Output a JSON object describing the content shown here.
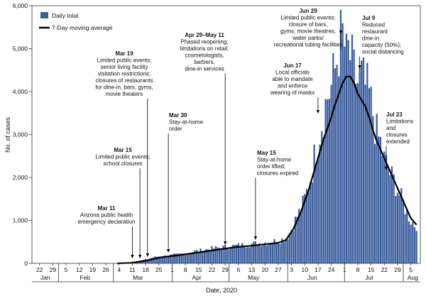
{
  "chart_data": {
    "type": "bar",
    "xlabel": "Date, 2020",
    "ylabel": "No. of cases",
    "ylim": [
      0,
      6000
    ],
    "yticks": [
      0,
      1000,
      2000,
      3000,
      4000,
      5000,
      6000
    ],
    "ytick_labels": [
      "0",
      "1,000",
      "2,000",
      "3,000",
      "4,000",
      "5,000",
      "6,000"
    ],
    "start_date": "2020-01-18",
    "x_day_ticks": [
      {
        "label": "22",
        "day": 4
      },
      {
        "label": "29",
        "day": 11
      },
      {
        "label": "5",
        "day": 18
      },
      {
        "label": "12",
        "day": 25
      },
      {
        "label": "19",
        "day": 32
      },
      {
        "label": "26",
        "day": 39
      },
      {
        "label": "4",
        "day": 46
      },
      {
        "label": "11",
        "day": 53
      },
      {
        "label": "18",
        "day": 60
      },
      {
        "label": "25",
        "day": 67
      },
      {
        "label": "1",
        "day": 74
      },
      {
        "label": "8",
        "day": 81
      },
      {
        "label": "15",
        "day": 88
      },
      {
        "label": "22",
        "day": 95
      },
      {
        "label": "29",
        "day": 102
      },
      {
        "label": "6",
        "day": 109
      },
      {
        "label": "13",
        "day": 116
      },
      {
        "label": "20",
        "day": 123
      },
      {
        "label": "27",
        "day": 130
      },
      {
        "label": "3",
        "day": 137
      },
      {
        "label": "10",
        "day": 144
      },
      {
        "label": "17",
        "day": 151
      },
      {
        "label": "24",
        "day": 158
      },
      {
        "label": "1",
        "day": 165
      },
      {
        "label": "8",
        "day": 172
      },
      {
        "label": "15",
        "day": 179
      },
      {
        "label": "22",
        "day": 186
      },
      {
        "label": "29",
        "day": 193
      },
      {
        "label": "5",
        "day": 200
      }
    ],
    "months": [
      {
        "label": "Jan",
        "day": 7
      },
      {
        "label": "Feb",
        "day": 28
      },
      {
        "label": "Mar",
        "day": 56
      },
      {
        "label": "Apr",
        "day": 87
      },
      {
        "label": "May",
        "day": 117
      },
      {
        "label": "Jun",
        "day": 148
      },
      {
        "label": "Jul",
        "day": 178
      },
      {
        "label": "Aug",
        "day": 201
      }
    ],
    "month_boundaries": [
      14,
      43,
      74,
      104,
      135,
      165,
      196
    ],
    "series": [
      {
        "name": "Daily total",
        "color": "#3e5f9e",
        "keypoints": [
          [
            0,
            0
          ],
          [
            45,
            0
          ],
          [
            50,
            5
          ],
          [
            52,
            15
          ],
          [
            55,
            40
          ],
          [
            58,
            70
          ],
          [
            61,
            100
          ],
          [
            64,
            140
          ],
          [
            67,
            160
          ],
          [
            70,
            170
          ],
          [
            74,
            190
          ],
          [
            78,
            210
          ],
          [
            82,
            240
          ],
          [
            86,
            280
          ],
          [
            90,
            310
          ],
          [
            94,
            340
          ],
          [
            98,
            360
          ],
          [
            102,
            380
          ],
          [
            106,
            400
          ],
          [
            110,
            420
          ],
          [
            114,
            440
          ],
          [
            118,
            460
          ],
          [
            122,
            480
          ],
          [
            126,
            500
          ],
          [
            130,
            530
          ],
          [
            134,
            590
          ],
          [
            136,
            700
          ],
          [
            138,
            900
          ],
          [
            140,
            1100
          ],
          [
            142,
            1250
          ],
          [
            144,
            1500
          ],
          [
            146,
            1800
          ],
          [
            148,
            2200
          ],
          [
            150,
            2700
          ],
          [
            152,
            3100
          ],
          [
            154,
            3500
          ],
          [
            156,
            3900
          ],
          [
            158,
            4100
          ],
          [
            160,
            4500
          ],
          [
            162,
            5000
          ],
          [
            163,
            5200
          ],
          [
            164,
            5300
          ],
          [
            165,
            5050
          ],
          [
            166,
            4700
          ],
          [
            167,
            4900
          ],
          [
            168,
            4800
          ],
          [
            170,
            4400
          ],
          [
            172,
            4200
          ],
          [
            174,
            4300
          ],
          [
            176,
            4100
          ],
          [
            178,
            3900
          ],
          [
            180,
            3500
          ],
          [
            182,
            3000
          ],
          [
            184,
            2800
          ],
          [
            186,
            2400
          ],
          [
            188,
            2200
          ],
          [
            190,
            2000
          ],
          [
            192,
            1850
          ],
          [
            194,
            1600
          ],
          [
            196,
            1400
          ],
          [
            198,
            1200
          ],
          [
            200,
            1000
          ],
          [
            202,
            900
          ],
          [
            203,
            900
          ]
        ],
        "amplitude": 0.17
      },
      {
        "name": "7-Day moving average",
        "color": "#000000",
        "points": [
          [
            45,
            0
          ],
          [
            52,
            10
          ],
          [
            60,
            60
          ],
          [
            68,
            140
          ],
          [
            76,
            180
          ],
          [
            84,
            230
          ],
          [
            92,
            280
          ],
          [
            100,
            330
          ],
          [
            108,
            380
          ],
          [
            116,
            410
          ],
          [
            124,
            450
          ],
          [
            130,
            480
          ],
          [
            134,
            540
          ],
          [
            138,
            800
          ],
          [
            142,
            1200
          ],
          [
            146,
            1700
          ],
          [
            150,
            2300
          ],
          [
            154,
            2900
          ],
          [
            158,
            3400
          ],
          [
            160,
            3700
          ],
          [
            162,
            3950
          ],
          [
            164,
            4200
          ],
          [
            166,
            4350
          ],
          [
            168,
            4350
          ],
          [
            170,
            4200
          ],
          [
            172,
            3950
          ],
          [
            174,
            3800
          ],
          [
            176,
            3650
          ],
          [
            178,
            3400
          ],
          [
            180,
            3100
          ],
          [
            182,
            2850
          ],
          [
            184,
            2650
          ],
          [
            186,
            2450
          ],
          [
            188,
            2250
          ],
          [
            190,
            2050
          ],
          [
            192,
            1850
          ],
          [
            194,
            1650
          ],
          [
            196,
            1450
          ],
          [
            198,
            1250
          ],
          [
            200,
            1050
          ],
          [
            202,
            950
          ],
          [
            203,
            900
          ]
        ]
      }
    ],
    "annotations": [
      {
        "title": "Mar 11",
        "lines": [
          "Arizona public health",
          "emergency declaration"
        ],
        "day": 53
      },
      {
        "title": "Mar 15",
        "lines": [
          "Limited public events;",
          "school closures"
        ],
        "day": 57
      },
      {
        "title": "Mar 19",
        "lines": [
          "Limited public events;",
          "senior living facility",
          "visitation restrictions;",
          "closures of restaurants",
          "for dine-in, bars, gyms,",
          "movie theaters"
        ],
        "day": 61
      },
      {
        "title": "Mar 30",
        "lines": [
          "Stay-at-home",
          "order"
        ],
        "day": 72
      },
      {
        "title": "Apr 29–May 11",
        "lines": [
          "Phased reopening;",
          "limitations on retail,",
          "cosmetologists,",
          "barbers,",
          "dine-in services"
        ],
        "day": 102
      },
      {
        "title": "May 15",
        "lines": [
          "Stay-at-home",
          "order lifted;",
          "closures expired"
        ],
        "day": 118
      },
      {
        "title": "Jun 17",
        "lines": [
          "Local officials",
          "able to mandate",
          "and enforce",
          "wearing of masks"
        ],
        "day": 151
      },
      {
        "title": "Jun 29",
        "lines": [
          "Limited public events;",
          "closure of bars,",
          "gyms, movie theatres,",
          "water parks/",
          "recreational tubing facilities"
        ],
        "day": 163
      },
      {
        "title": "Jul 9",
        "lines": [
          "Reduced",
          "restaurant",
          "dine-in",
          "capacity (50%);",
          "social distancing"
        ],
        "day": 173
      },
      {
        "title": "Jul 23",
        "lines": [
          "Limitations",
          "and",
          "closures",
          "extended"
        ],
        "day": 187
      }
    ]
  }
}
